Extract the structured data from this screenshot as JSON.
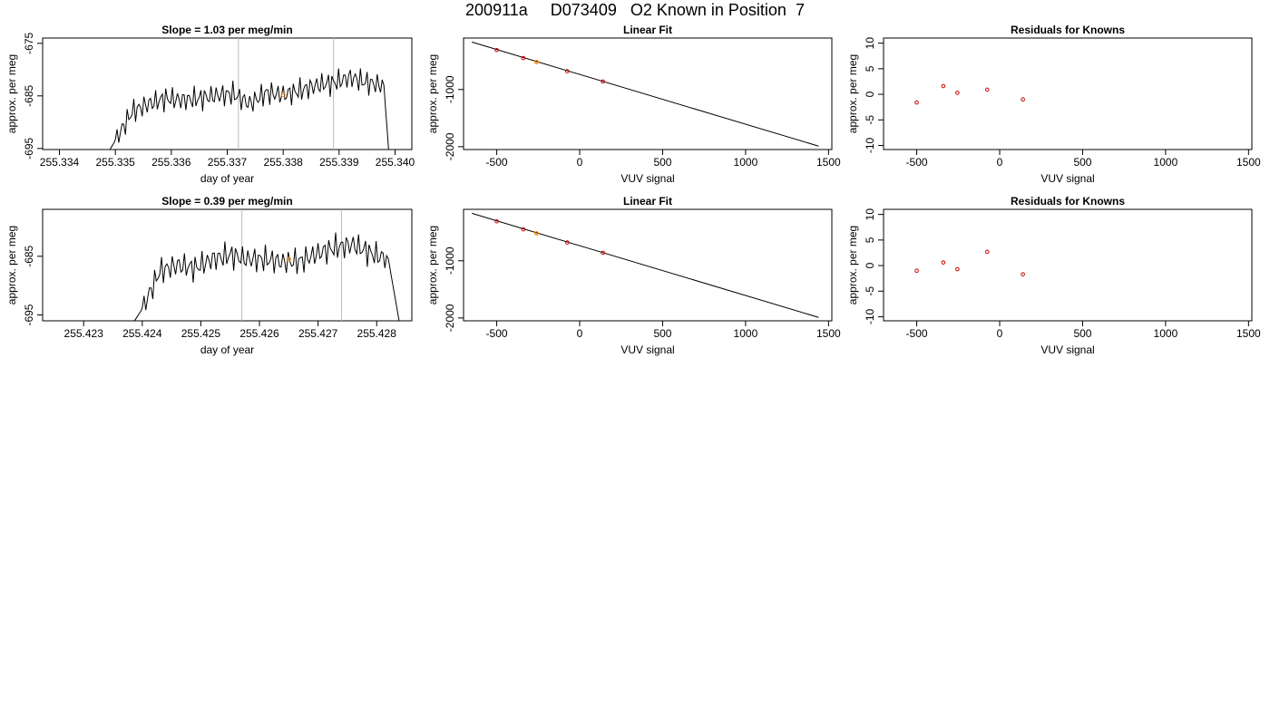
{
  "title": "200911a     D073409   O2 Known in Position  7",
  "colors": {
    "line": "#000000",
    "marker": "#cc0000",
    "highlight": "#ff9900",
    "guide": "#bbbbbb"
  },
  "chart_data": [
    {
      "type": "line",
      "title": "Slope =  1.03  per meg/min",
      "xlabel": "day of year",
      "ylabel": "approx. per meg",
      "xlim": [
        255.3337,
        255.3403
      ],
      "ylim": [
        -695.2,
        -674.0
      ],
      "xticks": [
        255.334,
        255.335,
        255.336,
        255.337,
        255.338,
        255.339,
        255.34
      ],
      "xtick_labels": [
        "255.334",
        "255.335",
        "255.336",
        "255.337",
        "255.338",
        "255.339",
        "255.340"
      ],
      "yticks": [
        -675,
        -685,
        -695
      ],
      "ytick_labels": [
        "-675",
        "-685",
        "-695"
      ],
      "vlines": [
        255.3372,
        255.3389
      ],
      "highlight_point": {
        "x": 255.338,
        "y": -684.8
      },
      "trace_start": 255.3348,
      "trace_end": 255.3399,
      "series": [
        {
          "x": [
            255.3348,
            255.335,
            255.3353,
            255.3356,
            255.3359,
            255.3362,
            255.3365,
            255.3368,
            255.3371,
            255.3374,
            255.3377,
            255.338,
            255.3383,
            255.3386,
            255.3389,
            255.3392,
            255.3395,
            255.3398,
            255.3399
          ],
          "y": [
            -697.0,
            -693.5,
            -688.0,
            -686.5,
            -685.5,
            -685.8,
            -685.5,
            -684.9,
            -684.6,
            -686.5,
            -684.4,
            -684.8,
            -684.0,
            -683.0,
            -682.5,
            -681.5,
            -682.5,
            -683.0,
            -697.5
          ]
        }
      ]
    },
    {
      "type": "scatter",
      "title": "Linear Fit",
      "xlabel": "VUV signal",
      "ylabel": "approx. per meg",
      "xlim": [
        -700,
        1520
      ],
      "ylim": [
        -2050,
        -100
      ],
      "xticks": [
        -500,
        0,
        500,
        1000,
        1500
      ],
      "xtick_labels": [
        "-500",
        "0",
        "500",
        "1000",
        "1500"
      ],
      "yticks": [
        -1000,
        -2000
      ],
      "ytick_labels": [
        "-1000",
        "-2000"
      ],
      "fit_line": {
        "x": [
          -650,
          1440
        ],
        "y": [
          -170,
          -1990
        ]
      },
      "points": {
        "x": [
          -500,
          -340,
          -260,
          -75,
          140
        ],
        "y": [
          -310,
          -450,
          -520,
          -680,
          -860
        ]
      },
      "highlight_point": {
        "x": -260,
        "y": -520
      }
    },
    {
      "type": "scatter",
      "title": "Residuals for Knowns",
      "xlabel": "VUV signal",
      "ylabel": "approx. per meg",
      "xlim": [
        -700,
        1520
      ],
      "ylim": [
        -10.8,
        11
      ],
      "xticks": [
        -500,
        0,
        500,
        1000,
        1500
      ],
      "xtick_labels": [
        "-500",
        "0",
        "500",
        "1000",
        "1500"
      ],
      "yticks": [
        10,
        5,
        0,
        -5,
        -10
      ],
      "ytick_labels": [
        "10",
        "5",
        "0",
        "-5",
        "-10"
      ],
      "points": {
        "x": [
          -500,
          -340,
          -255,
          -75,
          140
        ],
        "y": [
          -1.6,
          1.6,
          0.3,
          0.9,
          -1.0
        ]
      }
    },
    {
      "type": "line",
      "title": "Slope =  0.39  per meg/min",
      "xlabel": "day of year",
      "ylabel": "approx. per meg",
      "xlim": [
        255.4223,
        255.4286
      ],
      "ylim": [
        -696.0,
        -677.0
      ],
      "xticks": [
        255.423,
        255.424,
        255.425,
        255.426,
        255.427,
        255.428
      ],
      "xtick_labels": [
        "255.423",
        "255.424",
        "255.425",
        "255.426",
        "255.427",
        "255.428"
      ],
      "yticks": [
        -685,
        -695
      ],
      "ytick_labels": [
        "-685",
        "-695"
      ],
      "vlines": [
        255.4257,
        255.4274
      ],
      "highlight_point": {
        "x": 255.4265,
        "y": -685.5
      },
      "trace_start": 255.4238,
      "trace_end": 255.4284,
      "series": [
        {
          "x": [
            255.4238,
            255.424,
            255.4243,
            255.4246,
            255.4249,
            255.4252,
            255.4255,
            255.4258,
            255.4261,
            255.4264,
            255.4267,
            255.427,
            255.4273,
            255.4276,
            255.4279,
            255.4282,
            255.4284
          ],
          "y": [
            -697.0,
            -694.0,
            -687.5,
            -686.5,
            -687.0,
            -685.5,
            -684.8,
            -685.5,
            -685.5,
            -686.0,
            -685.8,
            -684.5,
            -683.5,
            -683.0,
            -684.5,
            -685.5,
            -697.0
          ]
        }
      ]
    },
    {
      "type": "scatter",
      "title": "Linear Fit",
      "xlabel": "VUV signal",
      "ylabel": "approx. per meg",
      "xlim": [
        -700,
        1520
      ],
      "ylim": [
        -2050,
        -100
      ],
      "xticks": [
        -500,
        0,
        500,
        1000,
        1500
      ],
      "xtick_labels": [
        "-500",
        "0",
        "500",
        "1000",
        "1500"
      ],
      "yticks": [
        -1000,
        -2000
      ],
      "ytick_labels": [
        "-1000",
        "-2000"
      ],
      "fit_line": {
        "x": [
          -650,
          1440
        ],
        "y": [
          -170,
          -1990
        ]
      },
      "points": {
        "x": [
          -500,
          -340,
          -260,
          -75,
          140
        ],
        "y": [
          -310,
          -450,
          -520,
          -680,
          -860
        ]
      },
      "highlight_point": {
        "x": -260,
        "y": -520
      }
    },
    {
      "type": "scatter",
      "title": "Residuals for Knowns",
      "xlabel": "VUV signal",
      "ylabel": "approx. per meg",
      "xlim": [
        -700,
        1520
      ],
      "ylim": [
        -10.8,
        11
      ],
      "xticks": [
        -500,
        0,
        500,
        1000,
        1500
      ],
      "xtick_labels": [
        "-500",
        "0",
        "500",
        "1000",
        "1500"
      ],
      "yticks": [
        10,
        5,
        0,
        -5,
        -10
      ],
      "ytick_labels": [
        "10",
        "5",
        "0",
        "-5",
        "-10"
      ],
      "points": {
        "x": [
          -500,
          -340,
          -255,
          -75,
          140
        ],
        "y": [
          -1.0,
          0.6,
          -0.7,
          2.7,
          -1.7
        ]
      }
    }
  ]
}
